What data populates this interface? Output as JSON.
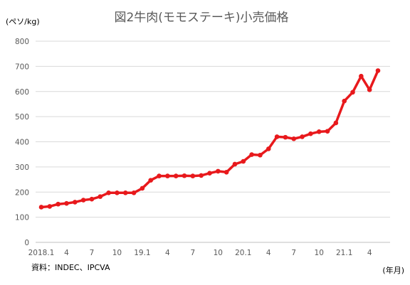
{
  "chart_data": {
    "type": "line",
    "title": "図2牛肉(モモステーキ)小売価格",
    "ylabel": "(ペソ/kg)",
    "xlabel": "(年月)",
    "source": "資料：INDEC、IPCVA",
    "ylim": [
      0,
      800
    ],
    "yticks": [
      "0",
      "100",
      "200",
      "300",
      "400",
      "500",
      "600",
      "700",
      "800"
    ],
    "grid": true,
    "legend": "none",
    "x_tick_labels": [
      {
        "index": 0,
        "label": "2018.1"
      },
      {
        "index": 3,
        "label": "4"
      },
      {
        "index": 6,
        "label": "7"
      },
      {
        "index": 9,
        "label": "10"
      },
      {
        "index": 12,
        "label": "19.1"
      },
      {
        "index": 15,
        "label": "4"
      },
      {
        "index": 18,
        "label": "7"
      },
      {
        "index": 21,
        "label": "10"
      },
      {
        "index": 24,
        "label": "20.1"
      },
      {
        "index": 27,
        "label": "4"
      },
      {
        "index": 30,
        "label": "7"
      },
      {
        "index": 33,
        "label": "10"
      },
      {
        "index": 36,
        "label": "21.1"
      },
      {
        "index": 39,
        "label": "4"
      }
    ],
    "series": [
      {
        "color": "#e8191c",
        "values": [
          140,
          143,
          152,
          155,
          160,
          168,
          172,
          182,
          197,
          197,
          197,
          197,
          215,
          247,
          264,
          264,
          264,
          265,
          264,
          266,
          275,
          283,
          279,
          311,
          322,
          349,
          347,
          372,
          420,
          418,
          412,
          420,
          432,
          440,
          442,
          475,
          562,
          597,
          661,
          607,
          683
        ]
      }
    ]
  }
}
